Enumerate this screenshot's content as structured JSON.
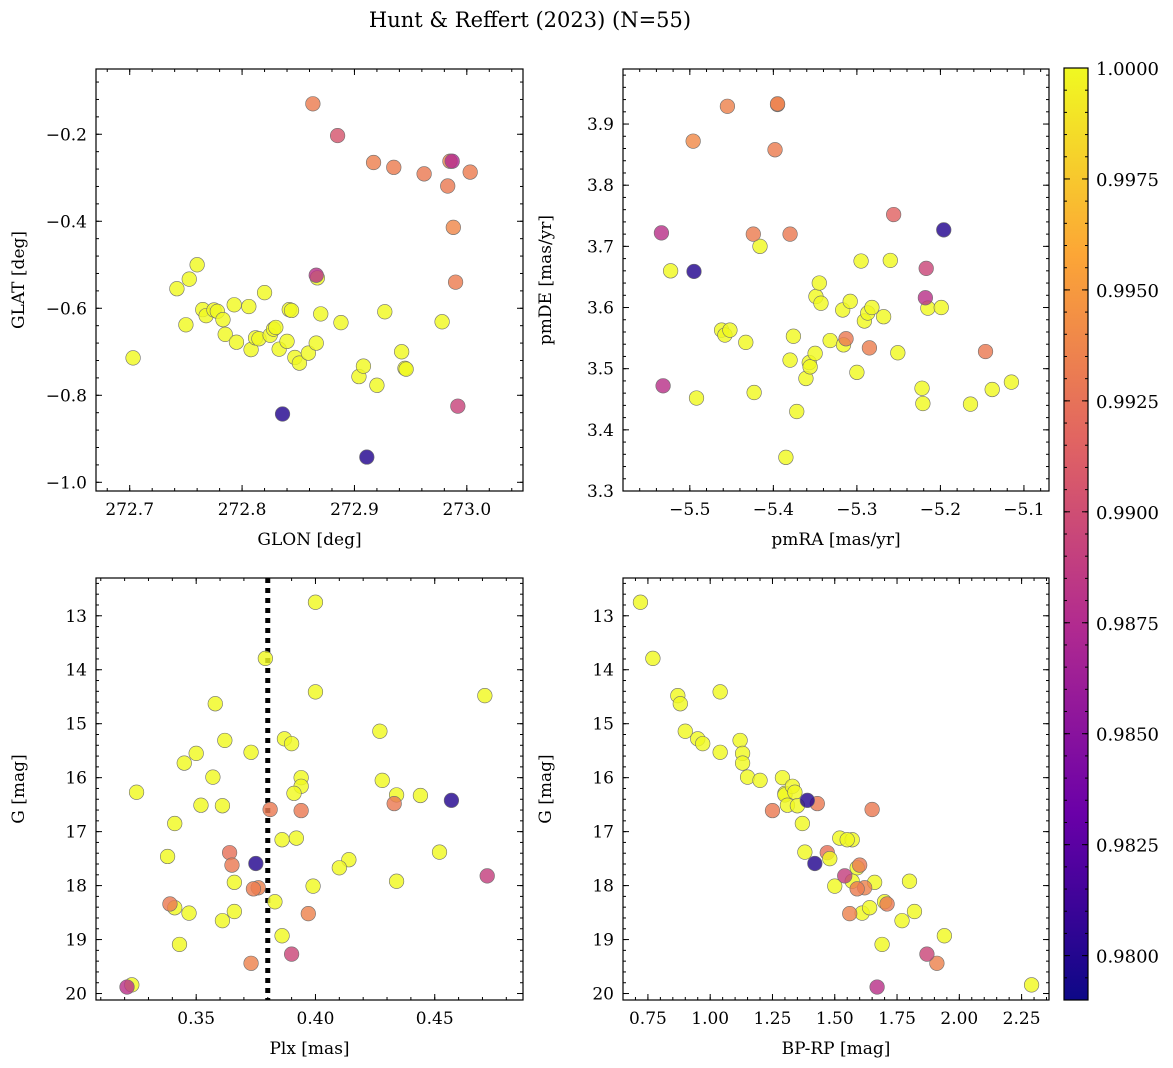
{
  "title": "Hunt & Reffert (2023) (N=55)",
  "colormap": {
    "name": "plasma",
    "stops": [
      "#0d0887",
      "#6a00a8",
      "#b12a90",
      "#e16462",
      "#fca636",
      "#f0f921"
    ],
    "vmin": 0.979,
    "vmax": 1.0,
    "ticks": [
      0.98,
      0.9825,
      0.985,
      0.9875,
      0.99,
      0.9925,
      0.995,
      0.9975,
      1.0
    ],
    "tick_labels": [
      "0.9800",
      "0.9825",
      "0.9850",
      "0.9875",
      "0.9900",
      "0.9925",
      "0.9950",
      "0.9975",
      "1.0000"
    ]
  },
  "chart_data": [
    {
      "type": "scatter",
      "id": "glon-glat",
      "xlabel": "GLON [deg]",
      "ylabel": "GLAT [deg]",
      "xlim": [
        272.67,
        273.05
      ],
      "ylim": [
        -1.02,
        -0.05
      ],
      "xticks": [
        272.7,
        272.8,
        272.9,
        273.0
      ],
      "xtick_labels": [
        "272.7",
        "272.8",
        "272.9",
        "273.0"
      ],
      "yticks": [
        -1.0,
        -0.8,
        -0.6,
        -0.4,
        -0.2
      ],
      "ytick_labels": [
        "−1.0",
        "−0.8",
        "−0.6",
        "−0.4",
        "−0.2"
      ],
      "x": [
        272.703,
        272.742,
        272.75,
        272.753,
        272.76,
        272.765,
        272.768,
        272.775,
        272.778,
        272.783,
        272.785,
        272.793,
        272.795,
        272.806,
        272.808,
        272.812,
        272.815,
        272.82,
        272.825,
        272.828,
        272.83,
        272.833,
        272.84,
        272.842,
        272.844,
        272.847,
        272.851,
        272.859,
        272.866,
        272.867,
        272.87,
        272.888,
        272.904,
        272.908,
        272.92,
        272.927,
        272.942,
        272.945,
        272.946,
        272.962,
        272.978,
        272.985,
        273.003,
        272.885,
        272.863,
        272.917,
        272.935,
        272.987,
        272.983,
        272.988,
        272.99,
        272.992,
        272.836,
        272.866,
        272.911
      ],
      "y": [
        -0.714,
        -0.555,
        -0.638,
        -0.533,
        -0.5,
        -0.603,
        -0.617,
        -0.604,
        -0.607,
        -0.626,
        -0.66,
        -0.592,
        -0.678,
        -0.596,
        -0.695,
        -0.668,
        -0.67,
        -0.564,
        -0.662,
        -0.648,
        -0.644,
        -0.694,
        -0.676,
        -0.603,
        -0.605,
        -0.713,
        -0.726,
        -0.703,
        -0.68,
        -0.53,
        -0.613,
        -0.633,
        -0.757,
        -0.733,
        -0.777,
        -0.608,
        -0.7,
        -0.738,
        -0.74,
        -0.291,
        -0.631,
        -0.262,
        -0.287,
        -0.203,
        -0.13,
        -0.265,
        -0.276,
        -0.262,
        -0.319,
        -0.414,
        -0.54,
        -0.825,
        -0.843,
        -0.524,
        -0.942
      ],
      "c": [
        1.0,
        1.0,
        1.0,
        1.0,
        1.0,
        1.0,
        1.0,
        1.0,
        1.0,
        1.0,
        1.0,
        1.0,
        1.0,
        1.0,
        1.0,
        1.0,
        1.0,
        1.0,
        1.0,
        1.0,
        1.0,
        1.0,
        1.0,
        1.0,
        1.0,
        1.0,
        1.0,
        1.0,
        1.0,
        1.0,
        1.0,
        1.0,
        1.0,
        1.0,
        1.0,
        1.0,
        1.0,
        1.0,
        1.0,
        0.993,
        1.0,
        0.9935,
        0.9932,
        0.9905,
        0.9932,
        0.9934,
        0.9932,
        0.9875,
        0.993,
        0.9938,
        0.9932,
        0.9893,
        0.98,
        0.988,
        0.98
      ]
    },
    {
      "type": "scatter",
      "id": "pmra-pmde",
      "xlabel": "pmRA [mas/yr]",
      "ylabel": "pmDE [mas/yr]",
      "xlim": [
        -5.58,
        -5.07
      ],
      "ylim": [
        3.3,
        3.99
      ],
      "xticks": [
        -5.5,
        -5.4,
        -5.3,
        -5.2,
        -5.1
      ],
      "xtick_labels": [
        "−5.5",
        "−5.4",
        "−5.3",
        "−5.2",
        "−5.1"
      ],
      "yticks": [
        3.3,
        3.4,
        3.5,
        3.6,
        3.7,
        3.8,
        3.9
      ],
      "ytick_labels": [
        "3.3",
        "3.4",
        "3.5",
        "3.6",
        "3.7",
        "3.8",
        "3.9"
      ],
      "x": [
        -5.523,
        -5.492,
        -5.462,
        -5.458,
        -5.452,
        -5.433,
        -5.423,
        -5.416,
        -5.385,
        -5.38,
        -5.376,
        -5.372,
        -5.361,
        -5.357,
        -5.356,
        -5.35,
        -5.349,
        -5.345,
        -5.343,
        -5.332,
        -5.317,
        -5.316,
        -5.308,
        -5.3,
        -5.295,
        -5.291,
        -5.287,
        -5.282,
        -5.268,
        -5.26,
        -5.251,
        -5.222,
        -5.221,
        -5.215,
        -5.199,
        -5.164,
        -5.138,
        -5.115,
        -5.455,
        -5.395,
        -5.395,
        -5.398,
        -5.496,
        -5.38,
        -5.424,
        -5.285,
        -5.256,
        -5.146,
        -5.313,
        -5.534,
        -5.218,
        -5.495,
        -5.532,
        -5.196,
        -5.217
      ],
      "y": [
        3.66,
        3.452,
        3.563,
        3.555,
        3.563,
        3.543,
        3.461,
        3.7,
        3.355,
        3.514,
        3.553,
        3.43,
        3.484,
        3.51,
        3.503,
        3.525,
        3.618,
        3.64,
        3.607,
        3.546,
        3.596,
        3.539,
        3.61,
        3.494,
        3.676,
        3.578,
        3.591,
        3.6,
        3.585,
        3.677,
        3.526,
        3.468,
        3.443,
        3.599,
        3.6,
        3.442,
        3.466,
        3.478,
        3.929,
        3.932,
        3.933,
        3.858,
        3.872,
        3.72,
        3.72,
        3.534,
        3.752,
        3.528,
        3.549,
        3.722,
        3.616,
        3.659,
        3.472,
        3.727,
        3.664
      ],
      "c": [
        1.0,
        1.0,
        1.0,
        1.0,
        1.0,
        1.0,
        1.0,
        1.0,
        1.0,
        1.0,
        1.0,
        1.0,
        1.0,
        1.0,
        1.0,
        1.0,
        1.0,
        1.0,
        1.0,
        1.0,
        1.0,
        1.0,
        1.0,
        1.0,
        1.0,
        1.0,
        1.0,
        1.0,
        1.0,
        1.0,
        1.0,
        1.0,
        1.0,
        1.0,
        1.0,
        1.0,
        1.0,
        1.0,
        0.9935,
        0.9932,
        0.9935,
        0.9932,
        0.994,
        0.993,
        0.9932,
        0.9933,
        0.9915,
        0.993,
        0.993,
        0.988,
        0.988,
        0.98,
        0.988,
        0.98,
        0.9895
      ]
    },
    {
      "type": "scatter",
      "id": "plx-g",
      "xlabel": "Plx [mas]",
      "ylabel": "G [mag]",
      "xlim": [
        0.308,
        0.487
      ],
      "ylim": [
        20.12,
        12.3
      ],
      "vline": {
        "x": 0.38,
        "style": "dotted"
      },
      "xticks": [
        0.35,
        0.4,
        0.45
      ],
      "xtick_labels": [
        "0.35",
        "0.40",
        "0.45"
      ],
      "yticks": [
        13,
        14,
        15,
        16,
        17,
        18,
        19,
        20
      ],
      "ytick_labels": [
        "13",
        "14",
        "15",
        "16",
        "17",
        "18",
        "19",
        "20"
      ],
      "x": [
        0.4,
        0.379,
        0.471,
        0.4,
        0.358,
        0.387,
        0.39,
        0.427,
        0.362,
        0.35,
        0.373,
        0.345,
        0.394,
        0.357,
        0.428,
        0.394,
        0.391,
        0.434,
        0.444,
        0.352,
        0.361,
        0.325,
        0.341,
        0.386,
        0.392,
        0.452,
        0.338,
        0.414,
        0.41,
        0.399,
        0.434,
        0.366,
        0.383,
        0.347,
        0.366,
        0.341,
        0.361,
        0.386,
        0.343,
        0.323,
        0.433,
        0.381,
        0.394,
        0.364,
        0.365,
        0.376,
        0.374,
        0.339,
        0.397,
        0.373,
        0.472,
        0.39,
        0.321,
        0.457,
        0.375
      ],
      "y": [
        12.75,
        13.79,
        14.48,
        14.41,
        14.63,
        15.28,
        15.37,
        15.14,
        15.31,
        15.55,
        15.53,
        15.73,
        16.0,
        15.99,
        16.05,
        16.16,
        16.29,
        16.32,
        16.33,
        16.51,
        16.52,
        16.27,
        16.85,
        17.15,
        17.12,
        17.38,
        17.46,
        17.52,
        17.67,
        18.01,
        17.92,
        17.94,
        18.3,
        18.51,
        18.48,
        18.41,
        18.65,
        18.93,
        19.09,
        19.84,
        16.48,
        16.59,
        16.61,
        17.39,
        17.62,
        18.04,
        18.06,
        18.34,
        18.52,
        19.44,
        17.82,
        19.27,
        19.88,
        16.42,
        17.59
      ],
      "c": [
        1.0,
        1.0,
        1.0,
        1.0,
        1.0,
        1.0,
        1.0,
        1.0,
        1.0,
        1.0,
        1.0,
        1.0,
        1.0,
        1.0,
        1.0,
        1.0,
        1.0,
        1.0,
        1.0,
        1.0,
        1.0,
        1.0,
        1.0,
        1.0,
        1.0,
        1.0,
        1.0,
        1.0,
        1.0,
        1.0,
        1.0,
        1.0,
        1.0,
        1.0,
        1.0,
        1.0,
        1.0,
        1.0,
        1.0,
        1.0,
        0.993,
        0.993,
        0.993,
        0.9925,
        0.993,
        0.9935,
        0.9932,
        0.993,
        0.9935,
        0.9935,
        0.989,
        0.9895,
        0.988,
        0.98,
        0.98
      ]
    },
    {
      "type": "scatter",
      "id": "bprp-g",
      "xlabel": "BP-RP [mag]",
      "ylabel": "G [mag]",
      "xlim": [
        0.65,
        2.36
      ],
      "ylim": [
        20.12,
        12.3
      ],
      "xticks": [
        0.75,
        1.0,
        1.25,
        1.5,
        1.75,
        2.0,
        2.25
      ],
      "xtick_labels": [
        "0.75",
        "1.00",
        "1.25",
        "1.50",
        "1.75",
        "2.00",
        "2.25"
      ],
      "yticks": [
        13,
        14,
        15,
        16,
        17,
        18,
        19,
        20
      ],
      "ytick_labels": [
        "13",
        "14",
        "15",
        "16",
        "17",
        "18",
        "19",
        "20"
      ],
      "x": [
        0.72,
        0.77,
        0.87,
        0.88,
        0.9,
        0.95,
        0.97,
        1.04,
        1.04,
        1.12,
        1.13,
        1.13,
        1.15,
        1.2,
        1.29,
        1.3,
        1.3,
        1.31,
        1.33,
        1.34,
        1.35,
        1.37,
        1.38,
        1.52,
        1.57,
        1.59,
        1.5,
        1.57,
        1.61,
        1.64,
        1.66,
        1.7,
        1.69,
        1.77,
        1.8,
        1.82,
        1.94,
        2.29,
        1.43,
        1.65,
        1.25,
        1.47,
        1.6,
        1.62,
        1.56,
        1.71,
        1.59,
        1.91,
        1.54,
        1.87,
        1.67,
        1.39,
        1.42,
        1.48,
        1.55
      ],
      "y": [
        12.75,
        13.79,
        14.48,
        14.63,
        15.14,
        15.28,
        15.37,
        15.53,
        14.41,
        15.31,
        15.55,
        15.73,
        15.99,
        16.05,
        16.0,
        16.29,
        16.32,
        16.51,
        16.16,
        16.27,
        16.52,
        16.85,
        17.38,
        17.12,
        17.15,
        17.67,
        18.01,
        17.92,
        18.51,
        18.41,
        17.94,
        18.3,
        19.09,
        18.65,
        17.92,
        18.48,
        18.93,
        19.84,
        16.48,
        16.59,
        16.61,
        17.39,
        17.62,
        18.04,
        18.52,
        18.34,
        18.06,
        19.44,
        17.82,
        19.27,
        19.88,
        16.42,
        17.59,
        17.5,
        17.15
      ],
      "c": [
        1.0,
        1.0,
        1.0,
        1.0,
        1.0,
        1.0,
        1.0,
        1.0,
        1.0,
        1.0,
        1.0,
        1.0,
        1.0,
        1.0,
        1.0,
        1.0,
        1.0,
        1.0,
        1.0,
        1.0,
        1.0,
        1.0,
        1.0,
        1.0,
        1.0,
        1.0,
        1.0,
        1.0,
        1.0,
        1.0,
        1.0,
        1.0,
        1.0,
        1.0,
        1.0,
        1.0,
        1.0,
        1.0,
        0.993,
        0.993,
        0.993,
        0.9925,
        0.993,
        0.9935,
        0.9935,
        0.993,
        0.9932,
        0.9935,
        0.989,
        0.9895,
        0.988,
        0.98,
        0.98,
        1.0,
        1.0
      ]
    }
  ]
}
